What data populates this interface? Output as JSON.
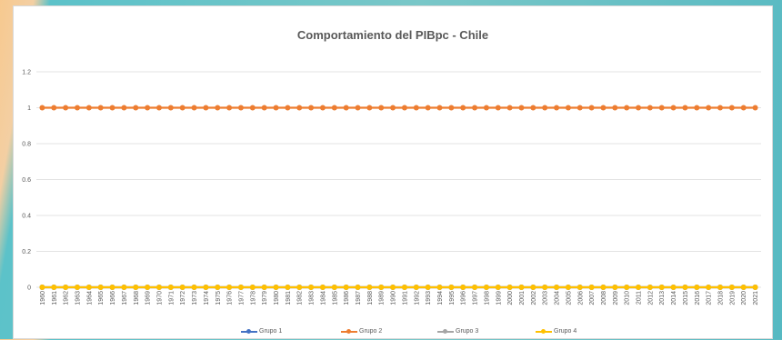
{
  "chart_data": {
    "type": "line",
    "title": "Comportamiento del PIBpc - Chile",
    "xlabel": "",
    "ylabel": "",
    "ylim": [
      0,
      1.2
    ],
    "yticks": [
      "0",
      "0.2",
      "0.4",
      "0.6",
      "0.8",
      "1",
      "1.2"
    ],
    "categories": [
      "1960",
      "1961",
      "1962",
      "1963",
      "1964",
      "1965",
      "1966",
      "1967",
      "1968",
      "1969",
      "1970",
      "1971",
      "1972",
      "1973",
      "1974",
      "1975",
      "1976",
      "1977",
      "1978",
      "1979",
      "1980",
      "1981",
      "1982",
      "1983",
      "1984",
      "1985",
      "1986",
      "1987",
      "1988",
      "1989",
      "1990",
      "1991",
      "1992",
      "1993",
      "1994",
      "1995",
      "1996",
      "1997",
      "1998",
      "1999",
      "2000",
      "2001",
      "2002",
      "2003",
      "2004",
      "2005",
      "2006",
      "2007",
      "2008",
      "2009",
      "2010",
      "2011",
      "2012",
      "2013",
      "2014",
      "2015",
      "2016",
      "2017",
      "2018",
      "2019",
      "2020",
      "2021"
    ],
    "grid": true,
    "legend_position": "bottom",
    "series": [
      {
        "name": "Grupo 1",
        "color": "#4472c4",
        "values": [
          0,
          0,
          0,
          0,
          0,
          0,
          0,
          0,
          0,
          0,
          0,
          0,
          0,
          0,
          0,
          0,
          0,
          0,
          0,
          0,
          0,
          0,
          0,
          0,
          0,
          0,
          0,
          0,
          0,
          0,
          0,
          0,
          0,
          0,
          0,
          0,
          0,
          0,
          0,
          0,
          0,
          0,
          0,
          0,
          0,
          0,
          0,
          0,
          0,
          0,
          0,
          0,
          0,
          0,
          0,
          0,
          0,
          0,
          0,
          0,
          0,
          0
        ]
      },
      {
        "name": "Grupo 2",
        "color": "#ed7d31",
        "values": [
          1,
          1,
          1,
          1,
          1,
          1,
          1,
          1,
          1,
          1,
          1,
          1,
          1,
          1,
          1,
          1,
          1,
          1,
          1,
          1,
          1,
          1,
          1,
          1,
          1,
          1,
          1,
          1,
          1,
          1,
          1,
          1,
          1,
          1,
          1,
          1,
          1,
          1,
          1,
          1,
          1,
          1,
          1,
          1,
          1,
          1,
          1,
          1,
          1,
          1,
          1,
          1,
          1,
          1,
          1,
          1,
          1,
          1,
          1,
          1,
          1,
          1
        ]
      },
      {
        "name": "Grupo 3",
        "color": "#a5a5a5",
        "values": [
          0,
          0,
          0,
          0,
          0,
          0,
          0,
          0,
          0,
          0,
          0,
          0,
          0,
          0,
          0,
          0,
          0,
          0,
          0,
          0,
          0,
          0,
          0,
          0,
          0,
          0,
          0,
          0,
          0,
          0,
          0,
          0,
          0,
          0,
          0,
          0,
          0,
          0,
          0,
          0,
          0,
          0,
          0,
          0,
          0,
          0,
          0,
          0,
          0,
          0,
          0,
          0,
          0,
          0,
          0,
          0,
          0,
          0,
          0,
          0,
          0,
          0
        ]
      },
      {
        "name": "Grupo 4",
        "color": "#ffc000",
        "values": [
          0,
          0,
          0,
          0,
          0,
          0,
          0,
          0,
          0,
          0,
          0,
          0,
          0,
          0,
          0,
          0,
          0,
          0,
          0,
          0,
          0,
          0,
          0,
          0,
          0,
          0,
          0,
          0,
          0,
          0,
          0,
          0,
          0,
          0,
          0,
          0,
          0,
          0,
          0,
          0,
          0,
          0,
          0,
          0,
          0,
          0,
          0,
          0,
          0,
          0,
          0,
          0,
          0,
          0,
          0,
          0,
          0,
          0,
          0,
          0,
          0,
          0
        ]
      }
    ]
  }
}
